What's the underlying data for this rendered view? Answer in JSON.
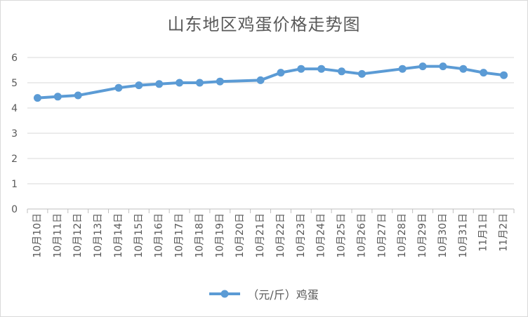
{
  "chart_data": {
    "type": "line",
    "title": "山东地区鸡蛋价格走势图",
    "categories": [
      "10月10日",
      "10月11日",
      "10月12日",
      "10月13日",
      "10月14日",
      "10月15日",
      "10月16日",
      "10月17日",
      "10月18日",
      "10月19日",
      "10月20日",
      "10月21日",
      "10月22日",
      "10月23日",
      "10月24日",
      "10月25日",
      "10月26日",
      "10月27日",
      "10月28日",
      "10月29日",
      "10月30日",
      "10月31日",
      "11月1日",
      "11月2日"
    ],
    "series": [
      {
        "name": "（元/斤）鸡蛋",
        "values": [
          4.4,
          4.45,
          4.5,
          null,
          4.8,
          4.9,
          4.95,
          5.0,
          5.0,
          5.05,
          null,
          5.1,
          5.4,
          5.55,
          5.55,
          5.45,
          5.35,
          null,
          5.55,
          5.65,
          5.65,
          5.55,
          5.4,
          5.3
        ]
      }
    ],
    "ylim": [
      0,
      6
    ],
    "yticks": [
      0,
      1,
      2,
      3,
      4,
      5,
      6
    ],
    "grid": true,
    "legend_position": "bottom",
    "colors": {
      "series": "#5b9bd5",
      "grid": "#d9d9d9",
      "text": "#595959"
    }
  }
}
